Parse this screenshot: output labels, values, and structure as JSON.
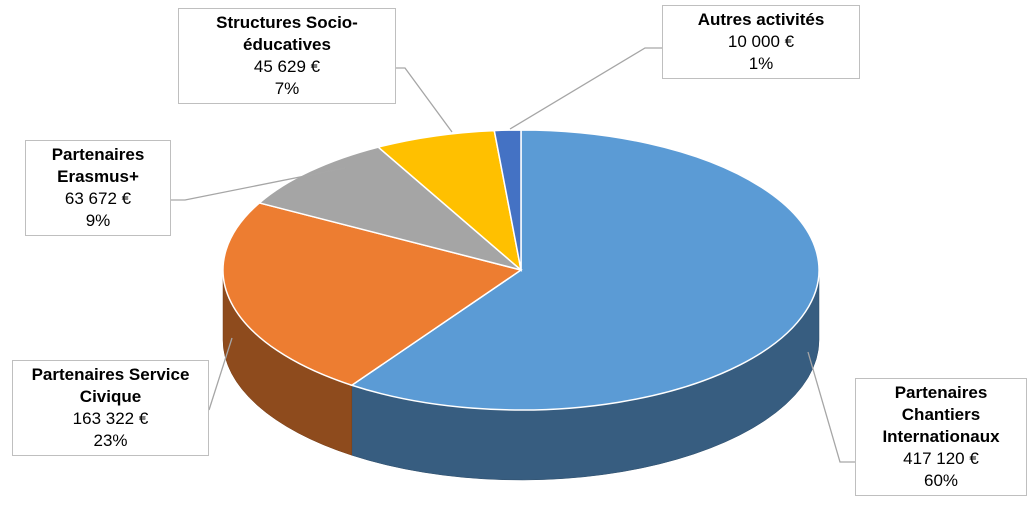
{
  "chart_data": {
    "type": "pie",
    "categories": [
      "Partenaires Chantiers Internationaux",
      "Partenaires Service Civique",
      "Partenaires Erasmus+",
      "Structures Socio-éducatives",
      "Autres activités"
    ],
    "values": [
      417120,
      163322,
      63672,
      45629,
      10000
    ],
    "value_labels": [
      "417 120 €",
      "163 322 €",
      "63 672 €",
      "45 629 €",
      "10 000 €"
    ],
    "percent_labels": [
      "60%",
      "23%",
      "9%",
      "7%",
      "1%"
    ],
    "colors": [
      "#5b9bd5",
      "#ed7d31",
      "#a5a5a5",
      "#ffc000",
      "#4472c4"
    ]
  }
}
